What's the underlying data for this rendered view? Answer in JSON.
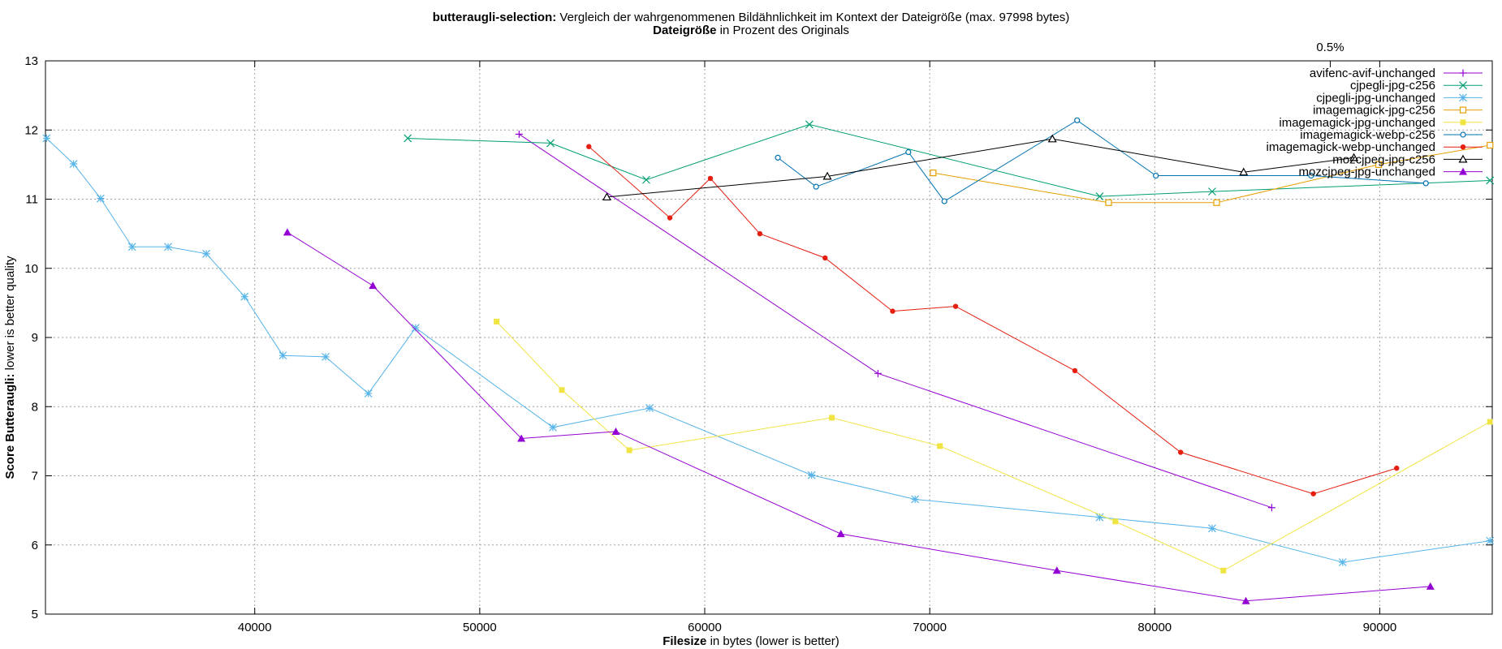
{
  "chart_data": {
    "type": "line",
    "title_bold": "butteraugli-selection:",
    "title_rest": " Vergleich der wahrgenommenen Bildähnlichkeit im Kontext der Dateigröße (max. 97998 bytes)",
    "subtitle_bold": "Dateigröße",
    "subtitle_rest": " in Prozent des Originals",
    "x2_tick_label": "0.5%",
    "xlabel_bold": "Filesize",
    "xlabel_rest": " in bytes (lower is better)",
    "ylabel_bold": "Score Butteraugli:",
    "ylabel_rest": " lower is better quality",
    "xlim": [
      30700,
      95000
    ],
    "ylim": [
      5,
      13
    ],
    "x_ticks": [
      40000,
      50000,
      60000,
      70000,
      80000,
      90000
    ],
    "y_ticks": [
      5,
      6,
      7,
      8,
      9,
      10,
      11,
      12,
      13
    ],
    "x2_tick_value": 87800,
    "grid": true,
    "legend_position": "top-right",
    "series": [
      {
        "name": "avifenc-avif-unchanged",
        "color": "#9400d3",
        "marker": "plus",
        "points": [
          [
            51750,
            11.94
          ],
          [
            67700,
            8.48
          ],
          [
            85200,
            6.54
          ]
        ]
      },
      {
        "name": "cjpegli-jpg-c256",
        "color": "#009e73",
        "marker": "cross",
        "points": [
          [
            46800,
            11.88
          ],
          [
            53150,
            11.81
          ],
          [
            57400,
            11.28
          ],
          [
            64650,
            12.08
          ],
          [
            77550,
            11.04
          ],
          [
            82550,
            11.11
          ],
          [
            94900,
            11.27
          ]
        ]
      },
      {
        "name": "cjpegli-jpg-unchanged",
        "color": "#56b4e9",
        "marker": "asterisk",
        "points": [
          [
            30750,
            11.88
          ],
          [
            31950,
            11.51
          ],
          [
            33150,
            11.01
          ],
          [
            34550,
            10.31
          ],
          [
            36150,
            10.31
          ],
          [
            37850,
            10.21
          ],
          [
            39550,
            9.59
          ],
          [
            41250,
            8.74
          ],
          [
            43150,
            8.72
          ],
          [
            45050,
            8.19
          ],
          [
            47150,
            9.14
          ],
          [
            53250,
            7.7
          ],
          [
            57550,
            7.98
          ],
          [
            64750,
            7.01
          ],
          [
            69350,
            6.66
          ],
          [
            77550,
            6.4
          ],
          [
            82550,
            6.24
          ],
          [
            88350,
            5.75
          ],
          [
            94900,
            6.06
          ]
        ]
      },
      {
        "name": "imagemagick-jpg-c256",
        "color": "#e69f00",
        "marker": "square-open",
        "points": [
          [
            70150,
            11.38
          ],
          [
            77950,
            10.95
          ],
          [
            82750,
            10.95
          ],
          [
            89950,
            11.5
          ],
          [
            94900,
            11.78
          ]
        ]
      },
      {
        "name": "imagemagick-jpg-unchanged",
        "color": "#f0e442",
        "marker": "square-filled",
        "points": [
          [
            50750,
            9.23
          ],
          [
            53650,
            8.24
          ],
          [
            56650,
            7.37
          ],
          [
            65650,
            7.84
          ],
          [
            70450,
            7.43
          ],
          [
            78250,
            6.34
          ],
          [
            83050,
            5.63
          ],
          [
            94900,
            7.78
          ]
        ]
      },
      {
        "name": "imagemagick-webp-c256",
        "color": "#0072b2",
        "marker": "circle-open",
        "points": [
          [
            63250,
            11.6
          ],
          [
            64950,
            11.18
          ],
          [
            69050,
            11.68
          ],
          [
            70650,
            10.97
          ],
          [
            76550,
            12.14
          ],
          [
            80050,
            11.34
          ],
          [
            86950,
            11.34
          ],
          [
            92050,
            11.23
          ]
        ]
      },
      {
        "name": "imagemagick-webp-unchanged",
        "color": "#e51e10",
        "marker": "circle-filled",
        "points": [
          [
            54850,
            11.76
          ],
          [
            58450,
            10.73
          ],
          [
            60250,
            11.3
          ],
          [
            62450,
            10.5
          ],
          [
            65350,
            10.15
          ],
          [
            68350,
            9.38
          ],
          [
            71150,
            9.45
          ],
          [
            76450,
            8.52
          ],
          [
            81150,
            7.34
          ],
          [
            87050,
            6.74
          ],
          [
            90750,
            7.11
          ]
        ]
      },
      {
        "name": "mozcjpeg-jpg-c256",
        "color": "#000000",
        "marker": "triangle-open",
        "points": [
          [
            55650,
            11.03
          ],
          [
            65450,
            11.33
          ],
          [
            75450,
            11.87
          ],
          [
            83950,
            11.39
          ],
          [
            88850,
            11.6
          ]
        ]
      },
      {
        "name": "mozcjpeg-jpg-unchanged",
        "color": "#9400d3",
        "marker": "triangle-filled",
        "points": [
          [
            41450,
            10.52
          ],
          [
            45250,
            9.75
          ],
          [
            51850,
            7.54
          ],
          [
            56050,
            7.64
          ],
          [
            66050,
            6.16
          ],
          [
            75650,
            5.63
          ],
          [
            84050,
            5.19
          ],
          [
            92250,
            5.4
          ]
        ]
      }
    ]
  }
}
